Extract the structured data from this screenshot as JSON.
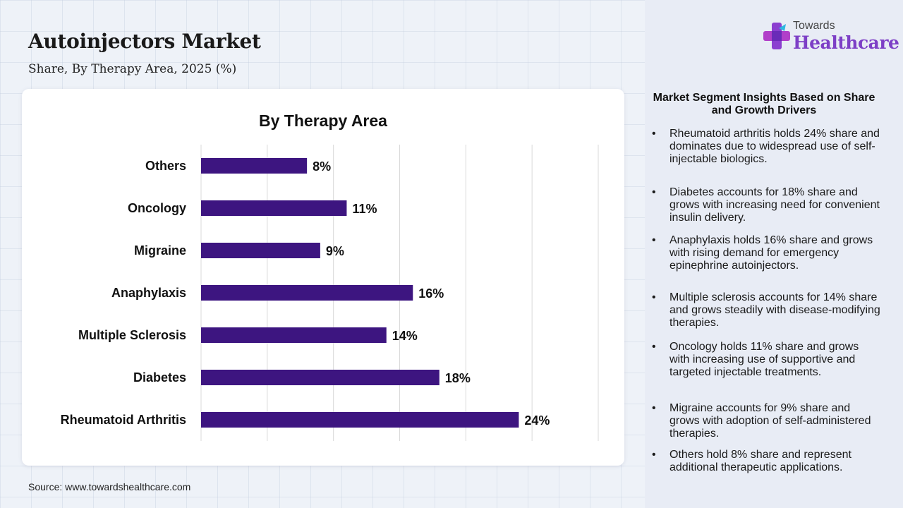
{
  "header": {
    "title": "Autoinjectors Market",
    "subtitle": "Share, By Therapy Area, 2025 (%)"
  },
  "logo": {
    "line1": "Towards",
    "line2": "Healthcare",
    "brand_color": "#7d3fc6"
  },
  "chart_data": {
    "type": "bar",
    "orientation": "horizontal",
    "title": "By Therapy Area",
    "categories": [
      "Others",
      "Oncology",
      "Migraine",
      "Anaphylaxis",
      "Multiple Sclerosis",
      "Diabetes",
      "Rheumatoid Arthritis"
    ],
    "values": [
      8,
      11,
      9,
      16,
      14,
      18,
      24
    ],
    "value_labels": [
      "8%",
      "11%",
      "9%",
      "16%",
      "14%",
      "18%",
      "24%"
    ],
    "xlim": [
      0,
      30
    ],
    "x_gridlines": [
      0,
      5,
      10,
      15,
      20,
      25,
      30
    ],
    "grid": true,
    "legend": "none",
    "bar_color": "#3d1580"
  },
  "insights": {
    "title": "Market Segment Insights Based on Share and Growth Drivers",
    "bullet": "•",
    "items": [
      "Rheumatoid arthritis holds 24% share and dominates due to widespread use of self-injectable biologics.",
      "Diabetes accounts for 18% share and grows with increasing need for convenient insulin delivery.",
      "Anaphylaxis holds 16% share and grows with rising demand for emergency epinephrine autoinjectors.",
      "Multiple sclerosis accounts for 14% share and grows steadily with disease-modifying therapies.",
      "Oncology holds 11% share and grows with increasing use of supportive and targeted injectable treatments.",
      "Migraine accounts for 9% share and grows with adoption of self-administered therapies.",
      "Others hold 8% share and represent additional therapeutic applications."
    ]
  },
  "footer": {
    "source": "Source: www.towardshealthcare.com"
  }
}
